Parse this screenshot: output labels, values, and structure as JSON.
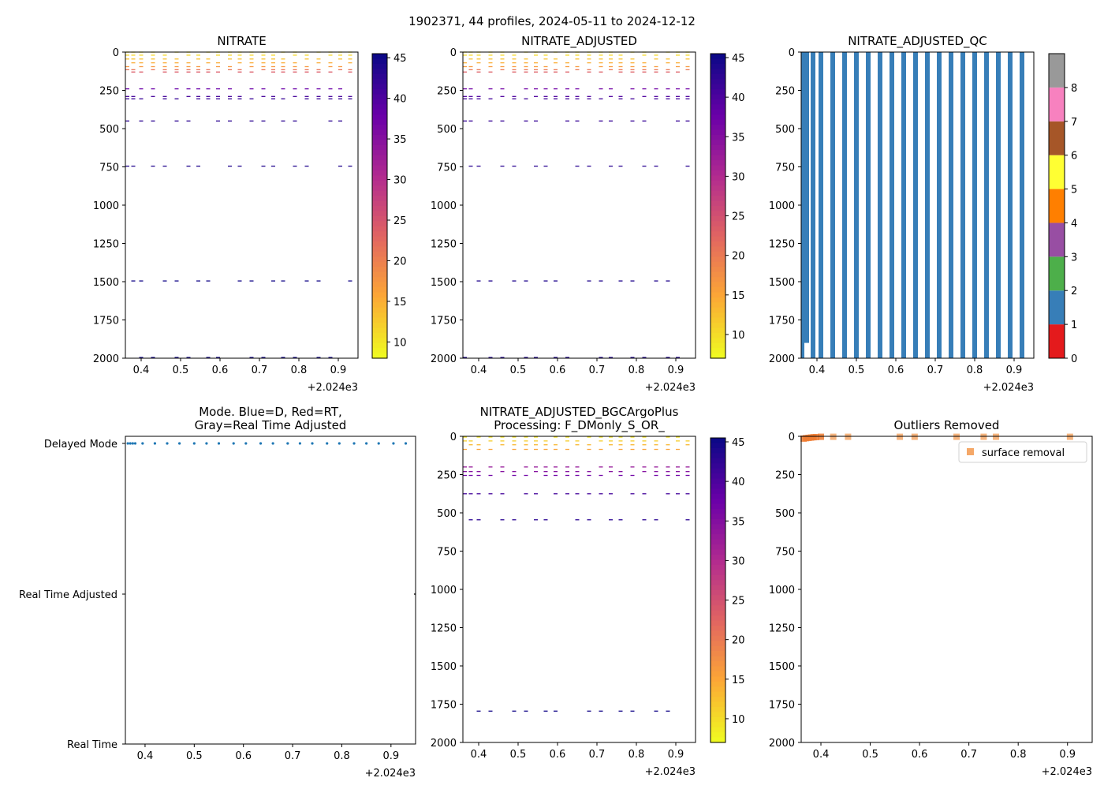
{
  "suptitle": "1902371, 44 profiles, 2024-05-11 to 2024-12-12",
  "x_ticks": [
    "0.4",
    "0.5",
    "0.6",
    "0.7",
    "0.8",
    "0.9"
  ],
  "x_tick_values": [
    0.4,
    0.5,
    0.6,
    0.7,
    0.8,
    0.9
  ],
  "x_offset_label": "+2.024e3",
  "depth_ticks": [
    "0",
    "250",
    "500",
    "750",
    "1000",
    "1250",
    "1500",
    "1750",
    "2000"
  ],
  "colors": {
    "qc_bar": "#377eb8",
    "dot": "#1f77b4",
    "outlier": "#f5a868",
    "outlier_dark": "#ee7b30"
  },
  "chart_data": [
    {
      "id": "nitrate",
      "type": "scatter",
      "title": "NITRATE",
      "xlabel": "",
      "ylabel": "",
      "xlim": [
        0.36,
        0.95
      ],
      "ylim": [
        2000,
        0
      ],
      "colorbar": {
        "cmap": "plasma_r",
        "range": [
          8,
          45.5
        ],
        "ticks": [
          "10",
          "15",
          "20",
          "25",
          "30",
          "35",
          "40",
          "45"
        ],
        "tick_values": [
          10,
          15,
          20,
          25,
          30,
          35,
          40,
          45
        ]
      },
      "profiles_x": [
        0.365,
        0.38,
        0.4,
        0.43,
        0.46,
        0.49,
        0.52,
        0.545,
        0.57,
        0.595,
        0.625,
        0.65,
        0.68,
        0.71,
        0.735,
        0.76,
        0.79,
        0.82,
        0.85,
        0.88,
        0.905,
        0.93
      ],
      "rows": [
        {
          "depth": 0,
          "value": 10
        },
        {
          "depth": 20,
          "value": 11
        },
        {
          "depth": 45,
          "value": 13
        },
        {
          "depth": 70,
          "value": 15
        },
        {
          "depth": 95,
          "value": 17
        },
        {
          "depth": 115,
          "value": 21
        },
        {
          "depth": 130,
          "value": 24
        },
        {
          "depth": 240,
          "value": 38
        },
        {
          "depth": 290,
          "value": 41
        },
        {
          "depth": 305,
          "value": 42
        },
        {
          "depth": 450,
          "value": 43
        },
        {
          "depth": 745,
          "value": 44
        },
        {
          "depth": 1495,
          "value": 45
        },
        {
          "depth": 1995,
          "value": 45
        }
      ]
    },
    {
      "id": "nitrate_adjusted",
      "type": "scatter",
      "title": "NITRATE_ADJUSTED",
      "xlabel": "",
      "ylabel": "",
      "xlim": [
        0.36,
        0.95
      ],
      "ylim": [
        2000,
        0
      ],
      "colorbar": {
        "cmap": "plasma_r",
        "range": [
          7,
          45.5
        ],
        "ticks": [
          "10",
          "15",
          "20",
          "25",
          "30",
          "35",
          "40",
          "45"
        ],
        "tick_values": [
          10,
          15,
          20,
          25,
          30,
          35,
          40,
          45
        ]
      },
      "profiles_x": [
        0.365,
        0.38,
        0.4,
        0.43,
        0.46,
        0.49,
        0.52,
        0.545,
        0.57,
        0.595,
        0.625,
        0.65,
        0.68,
        0.71,
        0.735,
        0.76,
        0.79,
        0.82,
        0.85,
        0.88,
        0.905,
        0.93
      ],
      "rows": [
        {
          "depth": 0,
          "value": 9
        },
        {
          "depth": 20,
          "value": 10
        },
        {
          "depth": 45,
          "value": 12
        },
        {
          "depth": 70,
          "value": 14
        },
        {
          "depth": 95,
          "value": 16
        },
        {
          "depth": 115,
          "value": 20
        },
        {
          "depth": 130,
          "value": 23
        },
        {
          "depth": 240,
          "value": 37
        },
        {
          "depth": 290,
          "value": 40
        },
        {
          "depth": 305,
          "value": 41
        },
        {
          "depth": 450,
          "value": 42
        },
        {
          "depth": 745,
          "value": 43
        },
        {
          "depth": 1495,
          "value": 44
        },
        {
          "depth": 1995,
          "value": 44
        }
      ]
    },
    {
      "id": "nitrate_adjusted_qc",
      "type": "bar",
      "title": "NITRATE_ADJUSTED_QC",
      "xlabel": "",
      "ylabel": "",
      "xlim": [
        0.36,
        0.95
      ],
      "ylim": [
        2000,
        0
      ],
      "qc_value": 1,
      "bar_x": [
        0.37,
        0.39,
        0.41,
        0.44,
        0.47,
        0.5,
        0.53,
        0.56,
        0.59,
        0.62,
        0.65,
        0.68,
        0.71,
        0.74,
        0.77,
        0.8,
        0.83,
        0.86,
        0.89,
        0.92
      ],
      "bar_depth": [
        1900,
        2000,
        2000,
        2000,
        2000,
        2000,
        2000,
        2000,
        2000,
        2000,
        2000,
        2000,
        2000,
        2000,
        2000,
        2000,
        2000,
        2000,
        2000,
        2000
      ],
      "colorbar": {
        "type": "qc",
        "range": [
          0,
          8
        ],
        "ticks": [
          "0",
          "1",
          "2",
          "3",
          "4",
          "5",
          "6",
          "7",
          "8"
        ],
        "colors": [
          "#e41a1c",
          "#377eb8",
          "#4daf4a",
          "#984ea3",
          "#ff7f00",
          "#ffff33",
          "#a65628",
          "#f781bf",
          "#999999"
        ]
      }
    },
    {
      "id": "mode",
      "type": "scatter",
      "title": "Mode. Blue=D, Red=RT,",
      "title_line2": "Gray=Real Time Adjusted",
      "xlabel": "",
      "ylabel": "",
      "xlim": [
        0.36,
        0.95
      ],
      "categories": [
        "Delayed Mode",
        "Real Time Adjusted",
        "Real Time"
      ],
      "delayed_x": [
        0.365,
        0.37,
        0.375,
        0.38,
        0.395,
        0.42,
        0.445,
        0.47,
        0.5,
        0.525,
        0.55,
        0.58,
        0.605,
        0.635,
        0.66,
        0.69,
        0.715,
        0.74,
        0.77,
        0.795,
        0.825,
        0.85,
        0.875,
        0.905,
        0.93
      ],
      "rt_adjusted_x": [
        0.95
      ]
    },
    {
      "id": "bgc_argo_plus",
      "type": "scatter",
      "title": "NITRATE_ADJUSTED_BGCArgoPlus",
      "title_line2": "Processing: F_DMonly_S_OR_",
      "xlabel": "",
      "ylabel": "",
      "xlim": [
        0.36,
        0.95
      ],
      "ylim": [
        2000,
        0
      ],
      "colorbar": {
        "cmap": "plasma_r",
        "range": [
          7,
          45.5
        ],
        "ticks": [
          "10",
          "15",
          "20",
          "25",
          "30",
          "35",
          "40",
          "45"
        ],
        "tick_values": [
          10,
          15,
          20,
          25,
          30,
          35,
          40,
          45
        ]
      },
      "profiles_x": [
        0.365,
        0.38,
        0.4,
        0.43,
        0.46,
        0.49,
        0.52,
        0.545,
        0.57,
        0.595,
        0.625,
        0.65,
        0.68,
        0.71,
        0.735,
        0.76,
        0.79,
        0.82,
        0.85,
        0.88,
        0.905,
        0.93
      ],
      "rows": [
        {
          "depth": 5,
          "value": 9
        },
        {
          "depth": 30,
          "value": 11
        },
        {
          "depth": 55,
          "value": 13
        },
        {
          "depth": 85,
          "value": 15
        },
        {
          "depth": 200,
          "value": 33
        },
        {
          "depth": 230,
          "value": 35
        },
        {
          "depth": 255,
          "value": 37
        },
        {
          "depth": 375,
          "value": 41
        },
        {
          "depth": 545,
          "value": 43
        },
        {
          "depth": 1795,
          "value": 45
        }
      ]
    },
    {
      "id": "outliers",
      "type": "scatter",
      "title": "Outliers Removed",
      "xlabel": "",
      "ylabel": "",
      "xlim": [
        0.36,
        0.95
      ],
      "ylim": [
        2000,
        0
      ],
      "legend": {
        "label": "surface removal",
        "loc": "upper right"
      },
      "x": [
        0.365,
        0.37,
        0.375,
        0.38,
        0.385,
        0.39,
        0.4,
        0.425,
        0.455,
        0.56,
        0.59,
        0.675,
        0.73,
        0.755,
        0.905
      ],
      "y": [
        15,
        12,
        10,
        8,
        6,
        5,
        3,
        3,
        3,
        3,
        3,
        3,
        3,
        3,
        3
      ]
    }
  ]
}
